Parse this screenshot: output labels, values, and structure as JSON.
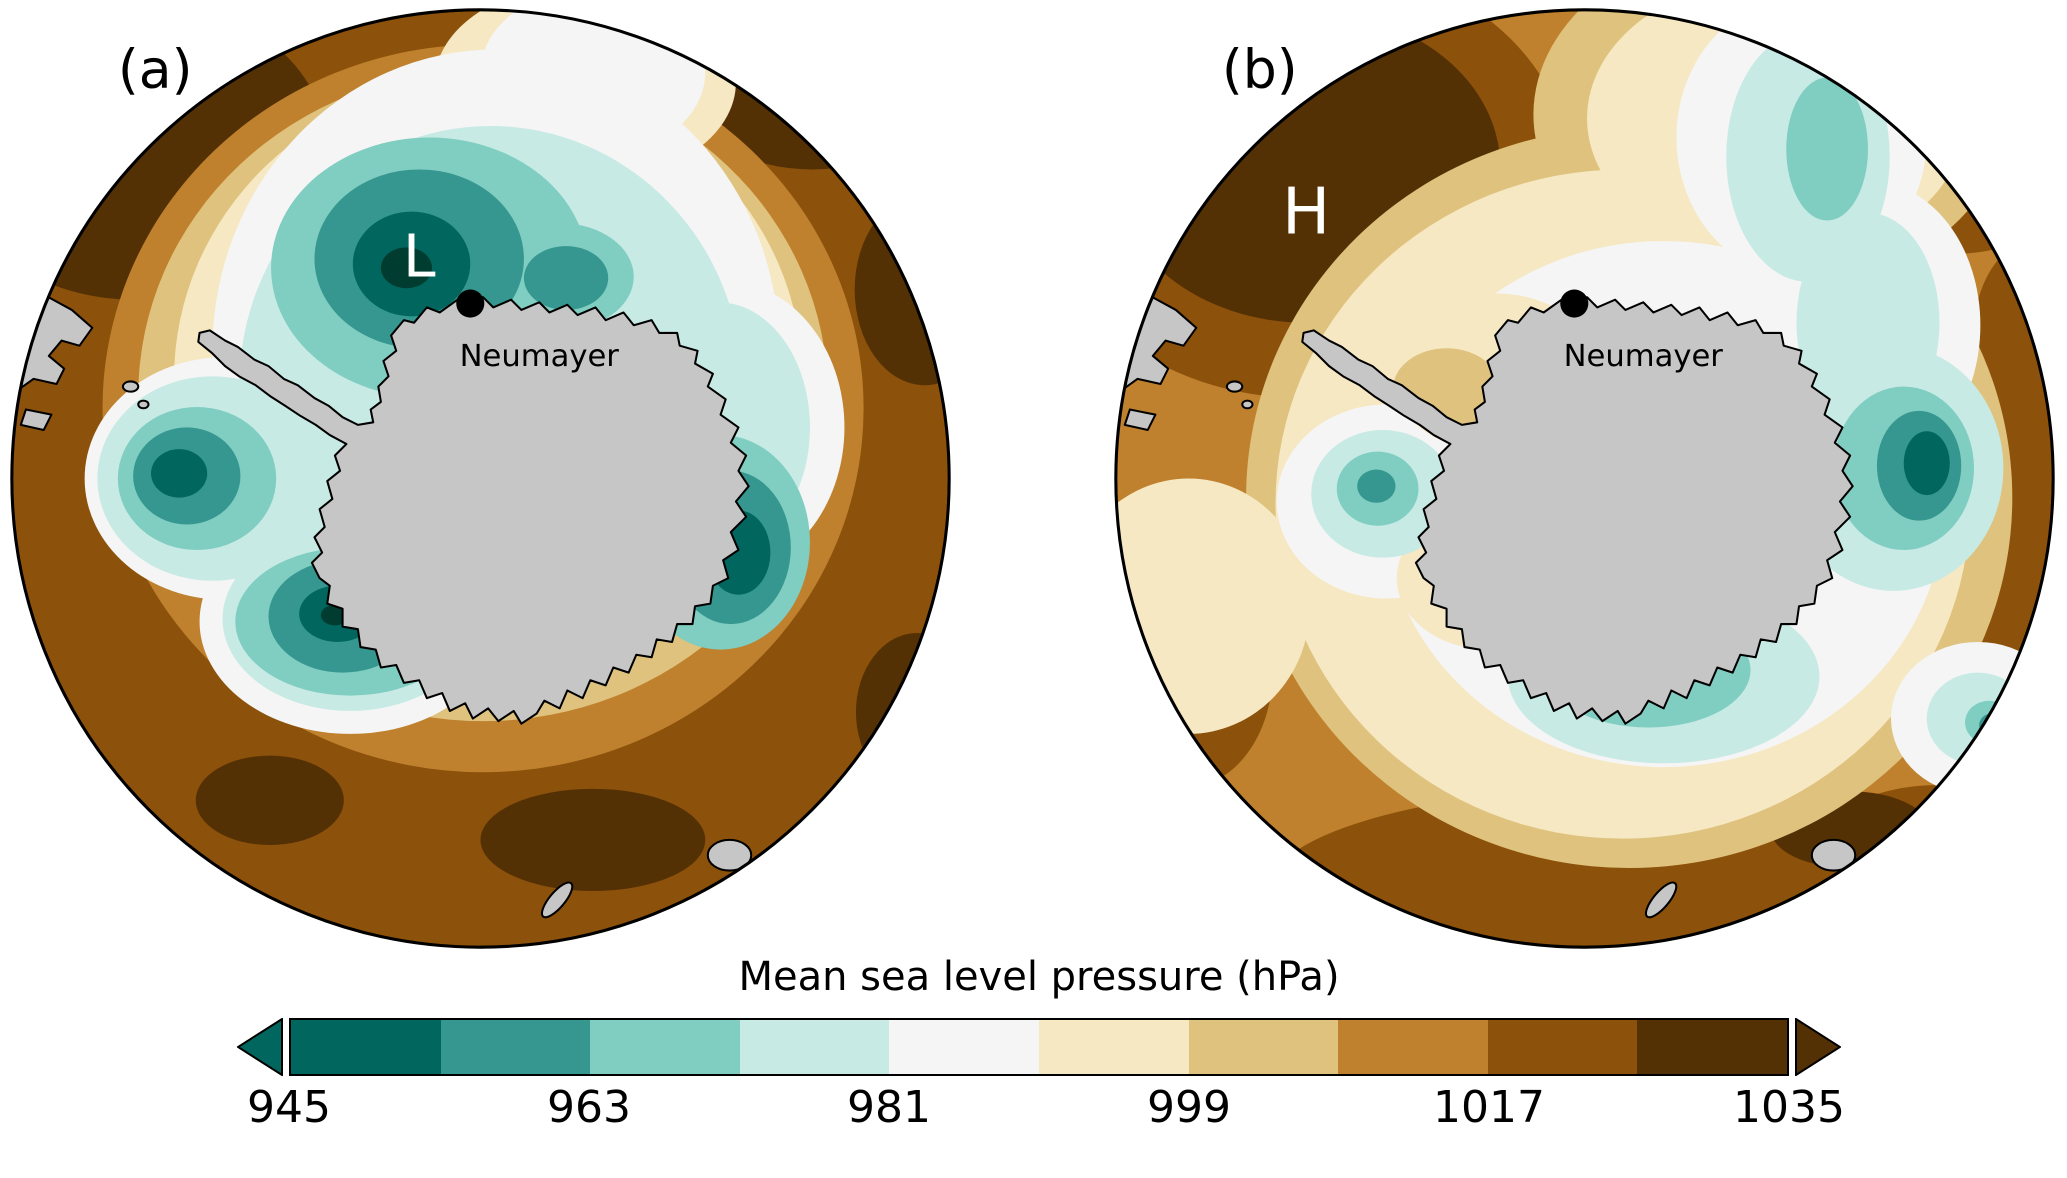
{
  "figure": {
    "background_color": "#ffffff",
    "panels": [
      {
        "id": "a",
        "label": "(a)",
        "center_label": "L",
        "center_type": "low-pressure-center",
        "station": {
          "name": "Neumayer",
          "marker": "black-dot"
        }
      },
      {
        "id": "b",
        "label": "(b)",
        "center_label": "H",
        "center_type": "high-pressure-center",
        "station": {
          "name": "Neumayer",
          "marker": "black-dot"
        }
      }
    ],
    "colorbar": {
      "title": "Mean sea level pressure (hPa)",
      "unit": "hPa",
      "range": [
        945,
        1035
      ],
      "ticks": [
        945,
        963,
        981,
        999,
        1017,
        1035
      ],
      "interval_per_segment_hpa": 9,
      "colors": [
        "#01665e",
        "#35978f",
        "#80cdc1",
        "#c7eae5",
        "#f5f5f5",
        "#f6e8c3",
        "#dfc27d",
        "#bf812d",
        "#8c510a",
        "#543005"
      ],
      "left_arrow_color": "#01665e",
      "right_arrow_color": "#543005"
    },
    "map_palette": {
      "land": "#c6c6c6",
      "coastline": "#000000",
      "deepest_low_teal": "#003c30",
      "deepest_high_brown": "#543005"
    }
  },
  "chart_data": {
    "type": "heatmap",
    "title": "Mean sea level pressure (hPa)",
    "projection": "south-polar stereographic (Antarctica centered)",
    "variable": "mean sea level pressure",
    "units": "hPa",
    "value_range": [
      945,
      1035
    ],
    "contour_interval_hpa": 9,
    "colormap": [
      "#01665e",
      "#35978f",
      "#80cdc1",
      "#c7eae5",
      "#f5f5f5",
      "#f6e8c3",
      "#dfc27d",
      "#bf812d",
      "#8c510a",
      "#543005"
    ],
    "colorbar_ticks": [
      945,
      963,
      981,
      999,
      1017,
      1035
    ],
    "legend_position": "bottom",
    "panels": [
      {
        "label": "(a)",
        "annotations": [
          {
            "text": "L",
            "meaning": "low pressure center",
            "approx_value_hpa": 947
          },
          {
            "text": "Neumayer",
            "meaning": "research station marker (black dot on coast)"
          }
        ],
        "summary": "Deep low pressure (dark teal, ~945-963 hPa) centered just north of Neumayer, with a broad circumpolar belt of low pressure (teals, 963-990 hPa) surrounding Antarctica and additional low cores west, southwest and east of the continent; pressure rises through cream/tan (999-1017 hPa) to browns (1017-1035 hPa) toward the mid-latitude edge of the map."
      },
      {
        "label": "(b)",
        "annotations": [
          {
            "text": "H",
            "meaning": "high pressure center",
            "approx_value_hpa": 1033
          },
          {
            "text": "Neumayer",
            "meaning": "research station marker (black dot on coast)"
          }
        ],
        "summary": "Strong high pressure (dark brown, ~1026-1035 hPa) over the ocean northwest of Neumayer; weaker, fragmented lows (teals, 963-990 hPa) east and south of the continent and small low cells west and southeast; most of the mid-latitude ring sits near 999-1026 hPa (creams and tans)."
      }
    ]
  }
}
